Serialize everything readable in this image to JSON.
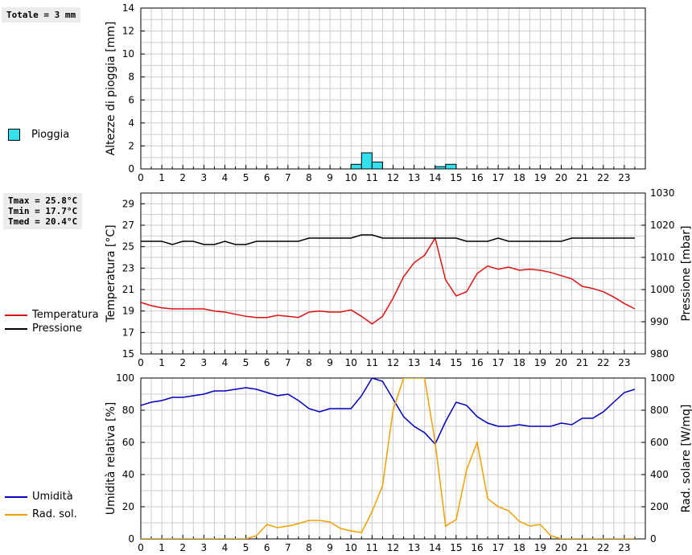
{
  "summary": {
    "total": "Totale = 3 mm",
    "tmax": "Tmax = 25.8°C",
    "tmin": "Tmin = 17.7°C",
    "tmed": "Tmed = 20.4°C"
  },
  "colors": {
    "rain": "#33e0ee",
    "temperature": "#dd1111",
    "pressure": "#000000",
    "humidity": "#0000bb",
    "solar": "#f0a000",
    "grid": "#cccccc"
  },
  "chart_data": [
    {
      "type": "bar",
      "ylabel": "Altezze di pioggia [mm]",
      "xlim": [
        0,
        24
      ],
      "ylim": [
        0,
        14
      ],
      "yticks": [
        0,
        2,
        4,
        6,
        8,
        10,
        12,
        14
      ],
      "xticks": [
        0,
        1,
        2,
        3,
        4,
        5,
        6,
        7,
        8,
        9,
        10,
        11,
        12,
        13,
        14,
        15,
        16,
        17,
        18,
        19,
        20,
        21,
        22,
        23
      ],
      "legend": [
        "Pioggia"
      ],
      "bars": [
        {
          "x0": 10.0,
          "x1": 10.5,
          "value": 0.4
        },
        {
          "x0": 10.5,
          "x1": 11.0,
          "value": 1.4
        },
        {
          "x0": 11.0,
          "x1": 11.5,
          "value": 0.6
        },
        {
          "x0": 14.0,
          "x1": 14.5,
          "value": 0.2
        },
        {
          "x0": 14.5,
          "x1": 15.0,
          "value": 0.4
        }
      ]
    },
    {
      "type": "line",
      "ylabel": "Temperatura [°C]",
      "y2label": "Pressione [mbar]",
      "xlim": [
        0,
        24
      ],
      "ylim": [
        15,
        30
      ],
      "y2lim": [
        980,
        1030
      ],
      "yticks": [
        15,
        17,
        19,
        21,
        23,
        25,
        27,
        29
      ],
      "y2ticks": [
        980,
        990,
        1000,
        1010,
        1020,
        1030
      ],
      "xticks": [
        0,
        1,
        2,
        3,
        4,
        5,
        6,
        7,
        8,
        9,
        10,
        11,
        12,
        13,
        14,
        15,
        16,
        17,
        18,
        19,
        20,
        21,
        22,
        23
      ],
      "series": [
        {
          "name": "Temperatura",
          "axis": "left",
          "x": [
            0,
            0.5,
            1,
            1.5,
            2,
            2.5,
            3,
            3.5,
            4,
            4.5,
            5,
            5.5,
            6,
            6.5,
            7,
            7.5,
            8,
            8.5,
            9,
            9.5,
            10,
            10.5,
            11,
            11.5,
            12,
            12.5,
            13,
            13.5,
            14,
            14.5,
            15,
            15.5,
            16,
            16.5,
            17,
            17.5,
            18,
            18.5,
            19,
            19.5,
            20,
            20.5,
            21,
            21.5,
            22,
            22.5,
            23,
            23.5
          ],
          "values": [
            19.8,
            19.5,
            19.3,
            19.2,
            19.2,
            19.2,
            19.2,
            19.0,
            18.9,
            18.7,
            18.5,
            18.4,
            18.4,
            18.6,
            18.5,
            18.4,
            18.9,
            19.0,
            18.9,
            18.9,
            19.1,
            18.5,
            17.8,
            18.5,
            20.2,
            22.2,
            23.5,
            24.2,
            25.8,
            21.9,
            20.4,
            20.8,
            22.5,
            23.2,
            22.9,
            23.1,
            22.8,
            22.9,
            22.8,
            22.6,
            22.3,
            22.0,
            21.3,
            21.1,
            20.8,
            20.3,
            19.7,
            19.2
          ]
        },
        {
          "name": "Pressione",
          "axis": "right",
          "x": [
            0,
            0.5,
            1,
            1.5,
            2,
            2.5,
            3,
            3.5,
            4,
            4.5,
            5,
            5.5,
            6,
            6.5,
            7,
            7.5,
            8,
            8.5,
            9,
            9.5,
            10,
            10.5,
            11,
            11.5,
            12,
            12.5,
            13,
            13.5,
            14,
            14.5,
            15,
            15.5,
            16,
            16.5,
            17,
            17.5,
            18,
            18.5,
            19,
            19.5,
            20,
            20.5,
            21,
            21.5,
            22,
            22.5,
            23,
            23.5
          ],
          "values": [
            1015,
            1015,
            1015,
            1014,
            1015,
            1015,
            1014,
            1014,
            1015,
            1014,
            1014,
            1015,
            1015,
            1015,
            1015,
            1015,
            1016,
            1016,
            1016,
            1016,
            1016,
            1017,
            1017,
            1016,
            1016,
            1016,
            1016,
            1016,
            1016,
            1016,
            1016,
            1015,
            1015,
            1015,
            1016,
            1015,
            1015,
            1015,
            1015,
            1015,
            1015,
            1016,
            1016,
            1016,
            1016,
            1016,
            1016,
            1016
          ]
        }
      ]
    },
    {
      "type": "line",
      "ylabel": "Umidità relativa [%]",
      "y2label": "Rad. solare [W/mq]",
      "xlim": [
        0,
        24
      ],
      "ylim": [
        0,
        100
      ],
      "y2lim": [
        0,
        1000
      ],
      "yticks": [
        0,
        20,
        40,
        60,
        80,
        100
      ],
      "y2ticks": [
        0,
        200,
        400,
        600,
        800,
        1000
      ],
      "xticks": [
        0,
        1,
        2,
        3,
        4,
        5,
        6,
        7,
        8,
        9,
        10,
        11,
        12,
        13,
        14,
        15,
        16,
        17,
        18,
        19,
        20,
        21,
        22,
        23
      ],
      "series": [
        {
          "name": "Umidità",
          "axis": "left",
          "x": [
            0,
            0.5,
            1,
            1.5,
            2,
            2.5,
            3,
            3.5,
            4,
            4.5,
            5,
            5.5,
            6,
            6.5,
            7,
            7.5,
            8,
            8.5,
            9,
            9.5,
            10,
            10.5,
            11,
            11.5,
            12,
            12.5,
            13,
            13.5,
            14,
            14.5,
            15,
            15.5,
            16,
            16.5,
            17,
            17.5,
            18,
            18.5,
            19,
            19.5,
            20,
            20.5,
            21,
            21.5,
            22,
            22.5,
            23,
            23.5
          ],
          "values": [
            83,
            85,
            86,
            88,
            88,
            89,
            90,
            92,
            92,
            93,
            94,
            93,
            91,
            89,
            90,
            86,
            81,
            79,
            81,
            81,
            81,
            89,
            100,
            98,
            87,
            76,
            70,
            66,
            59,
            73,
            85,
            83,
            76,
            72,
            70,
            70,
            71,
            70,
            70,
            70,
            72,
            71,
            75,
            75,
            79,
            85,
            91,
            93
          ]
        },
        {
          "name": "Rad. sol.",
          "axis": "right",
          "x": [
            0,
            0.5,
            1,
            1.5,
            2,
            2.5,
            3,
            3.5,
            4,
            4.5,
            5,
            5.5,
            6,
            6.5,
            7,
            7.5,
            8,
            8.5,
            9,
            9.5,
            10,
            10.5,
            11,
            11.5,
            12,
            12.5,
            13,
            13.5,
            14,
            14.5,
            15,
            15.5,
            16,
            16.5,
            17,
            17.5,
            18,
            18.5,
            19,
            19.5,
            20,
            20.5,
            21,
            21.5,
            22,
            22.5,
            23,
            23.5
          ],
          "values": [
            0,
            0,
            0,
            0,
            0,
            0,
            0,
            0,
            0,
            0,
            0,
            20,
            90,
            70,
            80,
            95,
            115,
            115,
            105,
            65,
            50,
            40,
            170,
            330,
            800,
            1000,
            1000,
            1000,
            600,
            80,
            120,
            430,
            600,
            250,
            200,
            175,
            110,
            80,
            90,
            20,
            0,
            0,
            0,
            0,
            0,
            0,
            0,
            0
          ]
        }
      ]
    }
  ]
}
